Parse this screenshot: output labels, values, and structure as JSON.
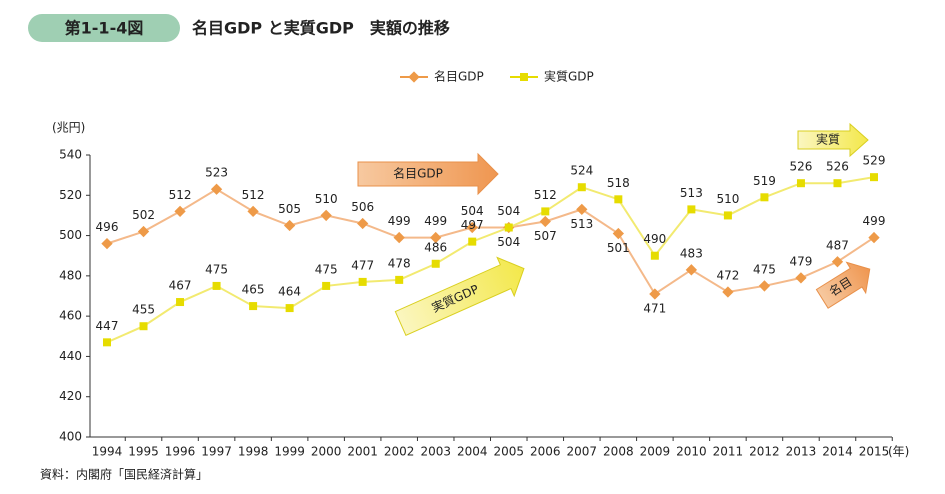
{
  "header": {
    "figure_label": "第1-1-4図"
  },
  "chart_data": {
    "type": "line",
    "title": "名目GDP と実質GDP　実額の推移",
    "y_label": "(兆円)",
    "x_label": "(年)",
    "categories": [
      "1994",
      "1995",
      "1996",
      "1997",
      "1998",
      "1999",
      "2000",
      "2001",
      "2002",
      "2003",
      "2004",
      "2005",
      "2006",
      "2007",
      "2008",
      "2009",
      "2010",
      "2011",
      "2012",
      "2013",
      "2014",
      "2015"
    ],
    "series": [
      {
        "name": "名目GDP",
        "color": "#ee9a48",
        "values": [
          496,
          502,
          512,
          523,
          512,
          505,
          510,
          506,
          499,
          499,
          504,
          504,
          507,
          513,
          501,
          471,
          483,
          472,
          475,
          479,
          487,
          499
        ]
      },
      {
        "name": "実質GDP",
        "color": "#e6dc00",
        "values": [
          447,
          455,
          467,
          475,
          465,
          464,
          475,
          477,
          478,
          486,
          497,
          504,
          512,
          524,
          518,
          490,
          513,
          510,
          519,
          526,
          526,
          529
        ]
      }
    ],
    "ylim": [
      400,
      540
    ],
    "yticks": [
      400,
      420,
      440,
      460,
      480,
      500,
      520,
      540
    ],
    "annotations": [
      "名目GDP",
      "実質GDP",
      "実質",
      "名目"
    ]
  },
  "source": "資料：内閣府「国民経済計算」"
}
